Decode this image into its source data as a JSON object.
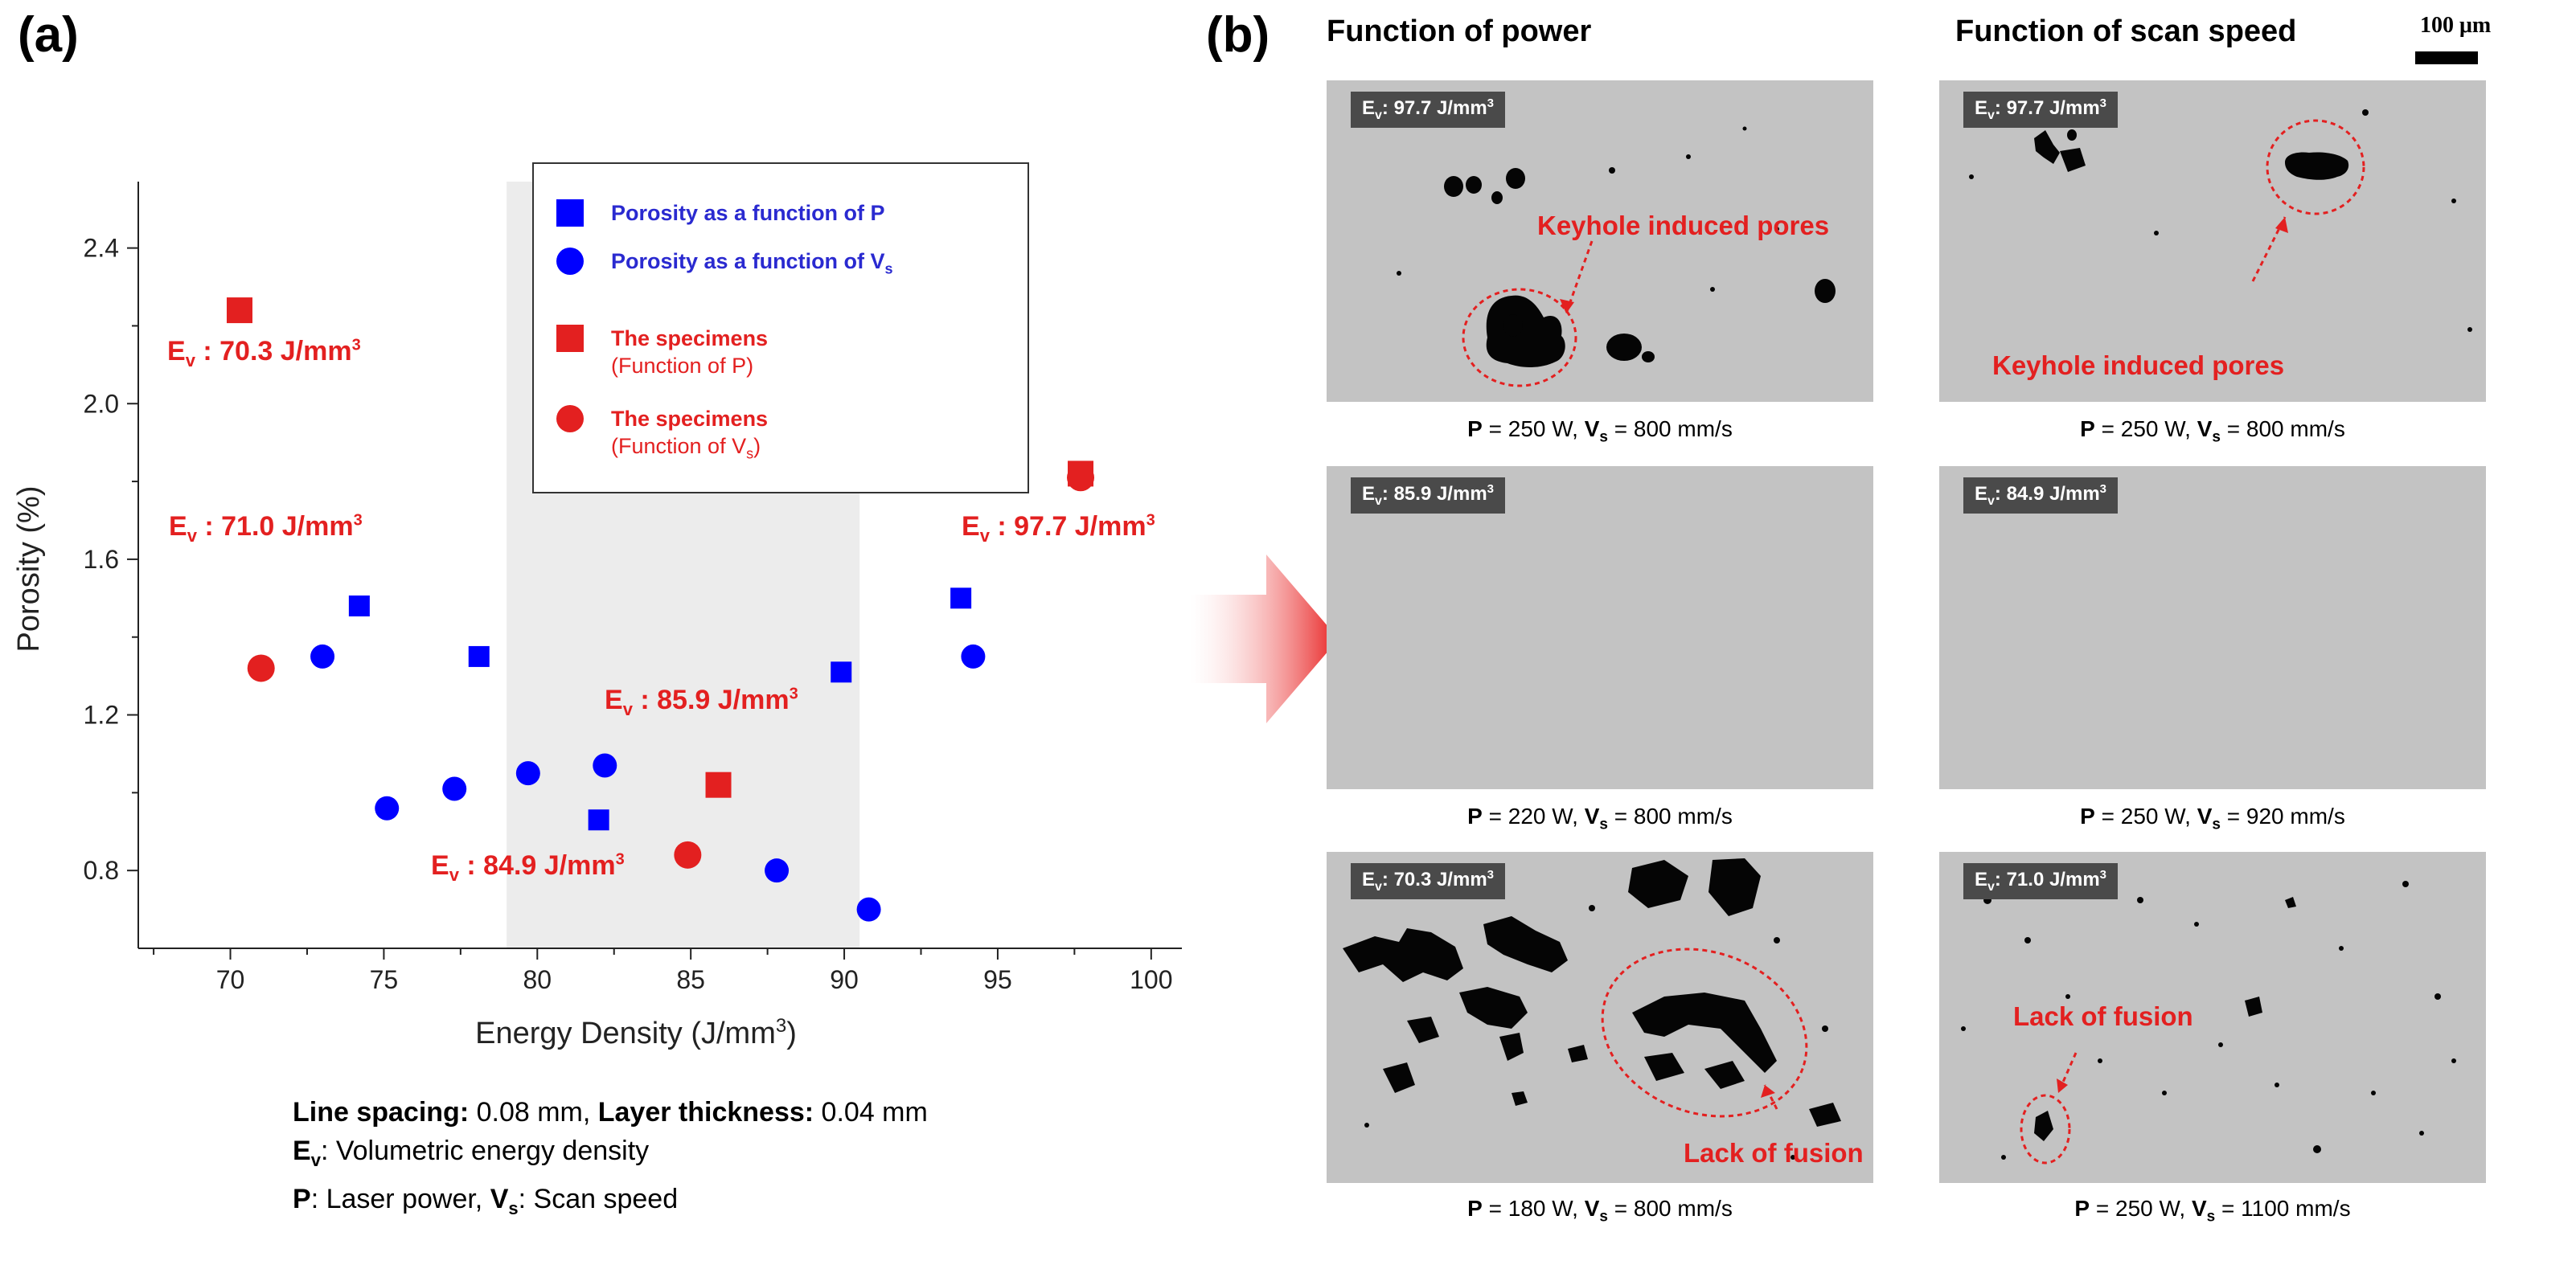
{
  "panel_a_label": "(a)",
  "panel_b_label": "(b)",
  "chart_data": {
    "type": "scatter",
    "xlabel": "Energy Density (J/mm",
    "xlabel_sup": "3",
    "xlabel_close": ")",
    "ylabel": "Porosity (%)",
    "xlim": [
      67,
      101
    ],
    "ylim": [
      0.6,
      2.55
    ],
    "xticks": [
      70,
      75,
      80,
      85,
      90,
      95,
      100
    ],
    "yticks": [
      0.8,
      1.2,
      1.6,
      2.0,
      2.4
    ],
    "ytick_labels": [
      "0.8",
      "1.2",
      "1.6",
      "2.0",
      "2.4"
    ],
    "shaded_region_x": [
      79,
      90.5
    ],
    "series": [
      {
        "name": "Porosity as a function of P",
        "marker": "square",
        "color": "#0000ff",
        "points": [
          [
            74.2,
            1.48
          ],
          [
            78.1,
            1.35
          ],
          [
            82.0,
            0.93
          ],
          [
            89.9,
            1.31
          ],
          [
            93.8,
            1.5
          ]
        ]
      },
      {
        "name": "Porosity as a function of V",
        "name_sub": "s",
        "marker": "circle",
        "color": "#0000ff",
        "points": [
          [
            73.0,
            1.35
          ],
          [
            75.1,
            0.96
          ],
          [
            77.3,
            1.01
          ],
          [
            79.7,
            1.05
          ],
          [
            82.2,
            1.07
          ],
          [
            87.8,
            0.8
          ],
          [
            90.8,
            0.7
          ],
          [
            94.2,
            1.35
          ]
        ]
      },
      {
        "name": "The specimens",
        "name_sub_line": "(Function of P)",
        "marker": "square",
        "color": "#e32020",
        "points": [
          [
            70.3,
            2.24
          ],
          [
            85.9,
            1.02
          ],
          [
            97.7,
            1.82
          ]
        ]
      },
      {
        "name": "The specimens",
        "name_sub_line": "(Function of V",
        "name_sub_line_sub": "s",
        "name_sub_line_end": ")",
        "marker": "circle",
        "color": "#e32020",
        "points": [
          [
            71.0,
            1.32
          ],
          [
            84.9,
            0.84
          ],
          [
            97.7,
            1.81
          ]
        ]
      }
    ],
    "annotations": [
      {
        "pre": "E",
        "sub": "v",
        "text": " : 70.3 J/mm",
        "sup": "3"
      },
      {
        "pre": "E",
        "sub": "v",
        "text": " : 71.0 J/mm",
        "sup": "3"
      },
      {
        "pre": "E",
        "sub": "v",
        "text": " : 85.9 J/mm",
        "sup": "3"
      },
      {
        "pre": "E",
        "sub": "v",
        "text": " : 84.9 J/mm",
        "sup": "3"
      },
      {
        "pre": "E",
        "sub": "v",
        "text": " : 97.7 J/mm",
        "sup": "3"
      }
    ]
  },
  "notes": {
    "line1_b1": "Line spacing:",
    "line1_t1": " 0.08 mm, ",
    "line1_b2": "Layer thickness:",
    "line1_t2": " 0.04 mm",
    "line2_pre": "E",
    "line2_sub": "v",
    "line2_text": ": Volumetric energy density",
    "line3_b1": "P",
    "line3_t1": ": Laser power, ",
    "line3_b2": "V",
    "line3_sub": "s",
    "line3_t2": ": Scan speed"
  },
  "columns": {
    "power_title": "Function of power",
    "speed_title": "Function of scan speed"
  },
  "scale_bar_label": "100 μm",
  "micrographs": {
    "p1": {
      "tag_pre": "E",
      "tag_sub": "v",
      "tag_text": ": 97.7 J/mm",
      "tag_sup": "3",
      "annotation": "Keyhole induced pores",
      "cond_p": "P",
      "cond_p_val": " = 250 W, ",
      "cond_v": "V",
      "cond_v_sub": "s",
      "cond_v_val": " = 800 mm/s"
    },
    "p2": {
      "tag_pre": "E",
      "tag_sub": "v",
      "tag_text": ": 85.9 J/mm",
      "tag_sup": "3",
      "cond_p": "P",
      "cond_p_val": " = 220 W, ",
      "cond_v": "V",
      "cond_v_sub": "s",
      "cond_v_val": " = 800 mm/s"
    },
    "p3": {
      "tag_pre": "E",
      "tag_sub": "v",
      "tag_text": ": 70.3 J/mm",
      "tag_sup": "3",
      "annotation": "Lack of fusion",
      "cond_p": "P",
      "cond_p_val": " = 180 W, ",
      "cond_v": "V",
      "cond_v_sub": "s",
      "cond_v_val": " = 800 mm/s"
    },
    "s1": {
      "tag_pre": "E",
      "tag_sub": "v",
      "tag_text": ": 97.7 J/mm",
      "tag_sup": "3",
      "annotation": "Keyhole induced pores",
      "cond_p": "P",
      "cond_p_val": " = 250 W, ",
      "cond_v": "V",
      "cond_v_sub": "s",
      "cond_v_val": " = 800 mm/s"
    },
    "s2": {
      "tag_pre": "E",
      "tag_sub": "v",
      "tag_text": ": 84.9 J/mm",
      "tag_sup": "3",
      "cond_p": "P",
      "cond_p_val": " = 250 W, ",
      "cond_v": "V",
      "cond_v_sub": "s",
      "cond_v_val": " = 920 mm/s"
    },
    "s3": {
      "tag_pre": "E",
      "tag_sub": "v",
      "tag_text": ": 71.0 J/mm",
      "tag_sup": "3",
      "annotation": "Lack of fusion",
      "cond_p": "P",
      "cond_p_val": " = 250 W, ",
      "cond_v": "V",
      "cond_v_sub": "s",
      "cond_v_val": " = 1100 mm/s"
    }
  },
  "colors": {
    "blue": "#0000ff",
    "red": "#e32020",
    "shade": "#ececec",
    "micro_bg": "#c3c3c3"
  }
}
